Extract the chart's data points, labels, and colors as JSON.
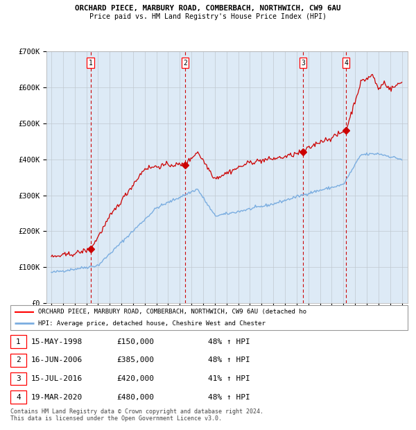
{
  "title_line1": "ORCHARD PIECE, MARBURY ROAD, COMBERBACH, NORTHWICH, CW9 6AU",
  "title_line2": "Price paid vs. HM Land Registry's House Price Index (HPI)",
  "ylim": [
    0,
    700000
  ],
  "yticks": [
    0,
    100000,
    200000,
    300000,
    400000,
    500000,
    600000,
    700000
  ],
  "ytick_labels": [
    "£0",
    "£100K",
    "£200K",
    "£300K",
    "£400K",
    "£500K",
    "£600K",
    "£700K"
  ],
  "sale_dates_num": [
    1998.37,
    2006.46,
    2016.54,
    2020.22
  ],
  "sale_prices": [
    150000,
    385000,
    420000,
    480000
  ],
  "sale_labels": [
    "1",
    "2",
    "3",
    "4"
  ],
  "vline_color": "#cc0000",
  "sale_color": "#cc0000",
  "hpi_color": "#7aade0",
  "background_color": "#ddeaf6",
  "legend_line1": "ORCHARD PIECE, MARBURY ROAD, COMBERBACH, NORTHWICH, CW9 6AU (detached ho",
  "legend_line2": "HPI: Average price, detached house, Cheshire West and Chester",
  "table_rows": [
    [
      "1",
      "15-MAY-1998",
      "£150,000",
      "48% ↑ HPI"
    ],
    [
      "2",
      "16-JUN-2006",
      "£385,000",
      "48% ↑ HPI"
    ],
    [
      "3",
      "15-JUL-2016",
      "£420,000",
      "41% ↑ HPI"
    ],
    [
      "4",
      "19-MAR-2020",
      "£480,000",
      "48% ↑ HPI"
    ]
  ],
  "footnote": "Contains HM Land Registry data © Crown copyright and database right 2024.\nThis data is licensed under the Open Government Licence v3.0.",
  "xlim_left": 1994.6,
  "xlim_right": 2025.5,
  "xtick_years": [
    1995,
    1996,
    1997,
    1998,
    1999,
    2000,
    2001,
    2002,
    2003,
    2004,
    2005,
    2006,
    2007,
    2008,
    2009,
    2010,
    2011,
    2012,
    2013,
    2014,
    2015,
    2016,
    2017,
    2018,
    2019,
    2020,
    2021,
    2022,
    2023,
    2024,
    2025
  ]
}
